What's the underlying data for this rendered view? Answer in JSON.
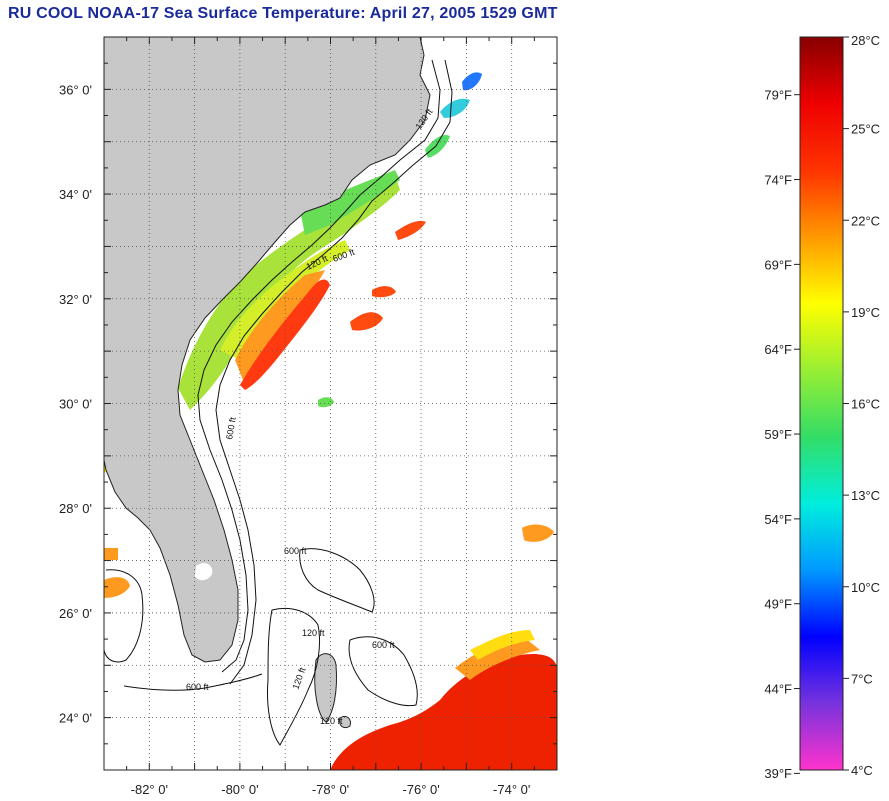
{
  "title": "RU COOL  NOAA-17  Sea Surface Temperature:  April 27, 2005 1529 GMT",
  "map": {
    "lat_range": [
      23,
      37
    ],
    "lon_range": [
      -83,
      -73
    ],
    "lat_ticks": [
      {
        "value": 36,
        "label": "36° 0'"
      },
      {
        "value": 34,
        "label": "34° 0'"
      },
      {
        "value": 32,
        "label": "32° 0'"
      },
      {
        "value": 30,
        "label": "30° 0'"
      },
      {
        "value": 28,
        "label": "28° 0'"
      },
      {
        "value": 26,
        "label": "26° 0'"
      },
      {
        "value": 24,
        "label": "24° 0'"
      }
    ],
    "lon_ticks": [
      {
        "value": -82,
        "label": "-82° 0'"
      },
      {
        "value": -80,
        "label": "-80° 0'"
      },
      {
        "value": -78,
        "label": "-78° 0'"
      },
      {
        "value": -76,
        "label": "-76° 0'"
      },
      {
        "value": -74,
        "label": "-74° 0'"
      }
    ],
    "colors": {
      "land": "#c8c8c8",
      "water_nodata": "#ffffff",
      "grid": "#555555"
    }
  },
  "colorbar": {
    "min_c": 4,
    "max_c": 28,
    "celsius_labels": [
      {
        "value": 28,
        "label": "28°C"
      },
      {
        "value": 25,
        "label": "25°C"
      },
      {
        "value": 22,
        "label": "22°C"
      },
      {
        "value": 19,
        "label": "19°C"
      },
      {
        "value": 16,
        "label": "16°C"
      },
      {
        "value": 13,
        "label": "13°C"
      },
      {
        "value": 10,
        "label": "10°C"
      },
      {
        "value": 7,
        "label": "7°C"
      },
      {
        "value": 4,
        "label": "4°C"
      }
    ],
    "fahrenheit_labels": [
      {
        "value": 79,
        "label": "79°F"
      },
      {
        "value": 74,
        "label": "74°F"
      },
      {
        "value": 69,
        "label": "69°F"
      },
      {
        "value": 64,
        "label": "64°F"
      },
      {
        "value": 59,
        "label": "59°F"
      },
      {
        "value": 54,
        "label": "54°F"
      },
      {
        "value": 49,
        "label": "49°F"
      },
      {
        "value": 44,
        "label": "44°F"
      },
      {
        "value": 39,
        "label": "39°F"
      }
    ],
    "stops": [
      "#ff33cc",
      "#7733dd",
      "#0000ff",
      "#0099ff",
      "#00eedd",
      "#33dd66",
      "#99ee33",
      "#ffff00",
      "#ff9900",
      "#ff3300",
      "#ee0000",
      "#880000"
    ]
  },
  "contour_labels": [
    "120 ft",
    "600 ft",
    "120 ft",
    "600 ft",
    "600 ft",
    "120 ft",
    "600 ft",
    "120 ft",
    "600 ft",
    "120 ft"
  ]
}
